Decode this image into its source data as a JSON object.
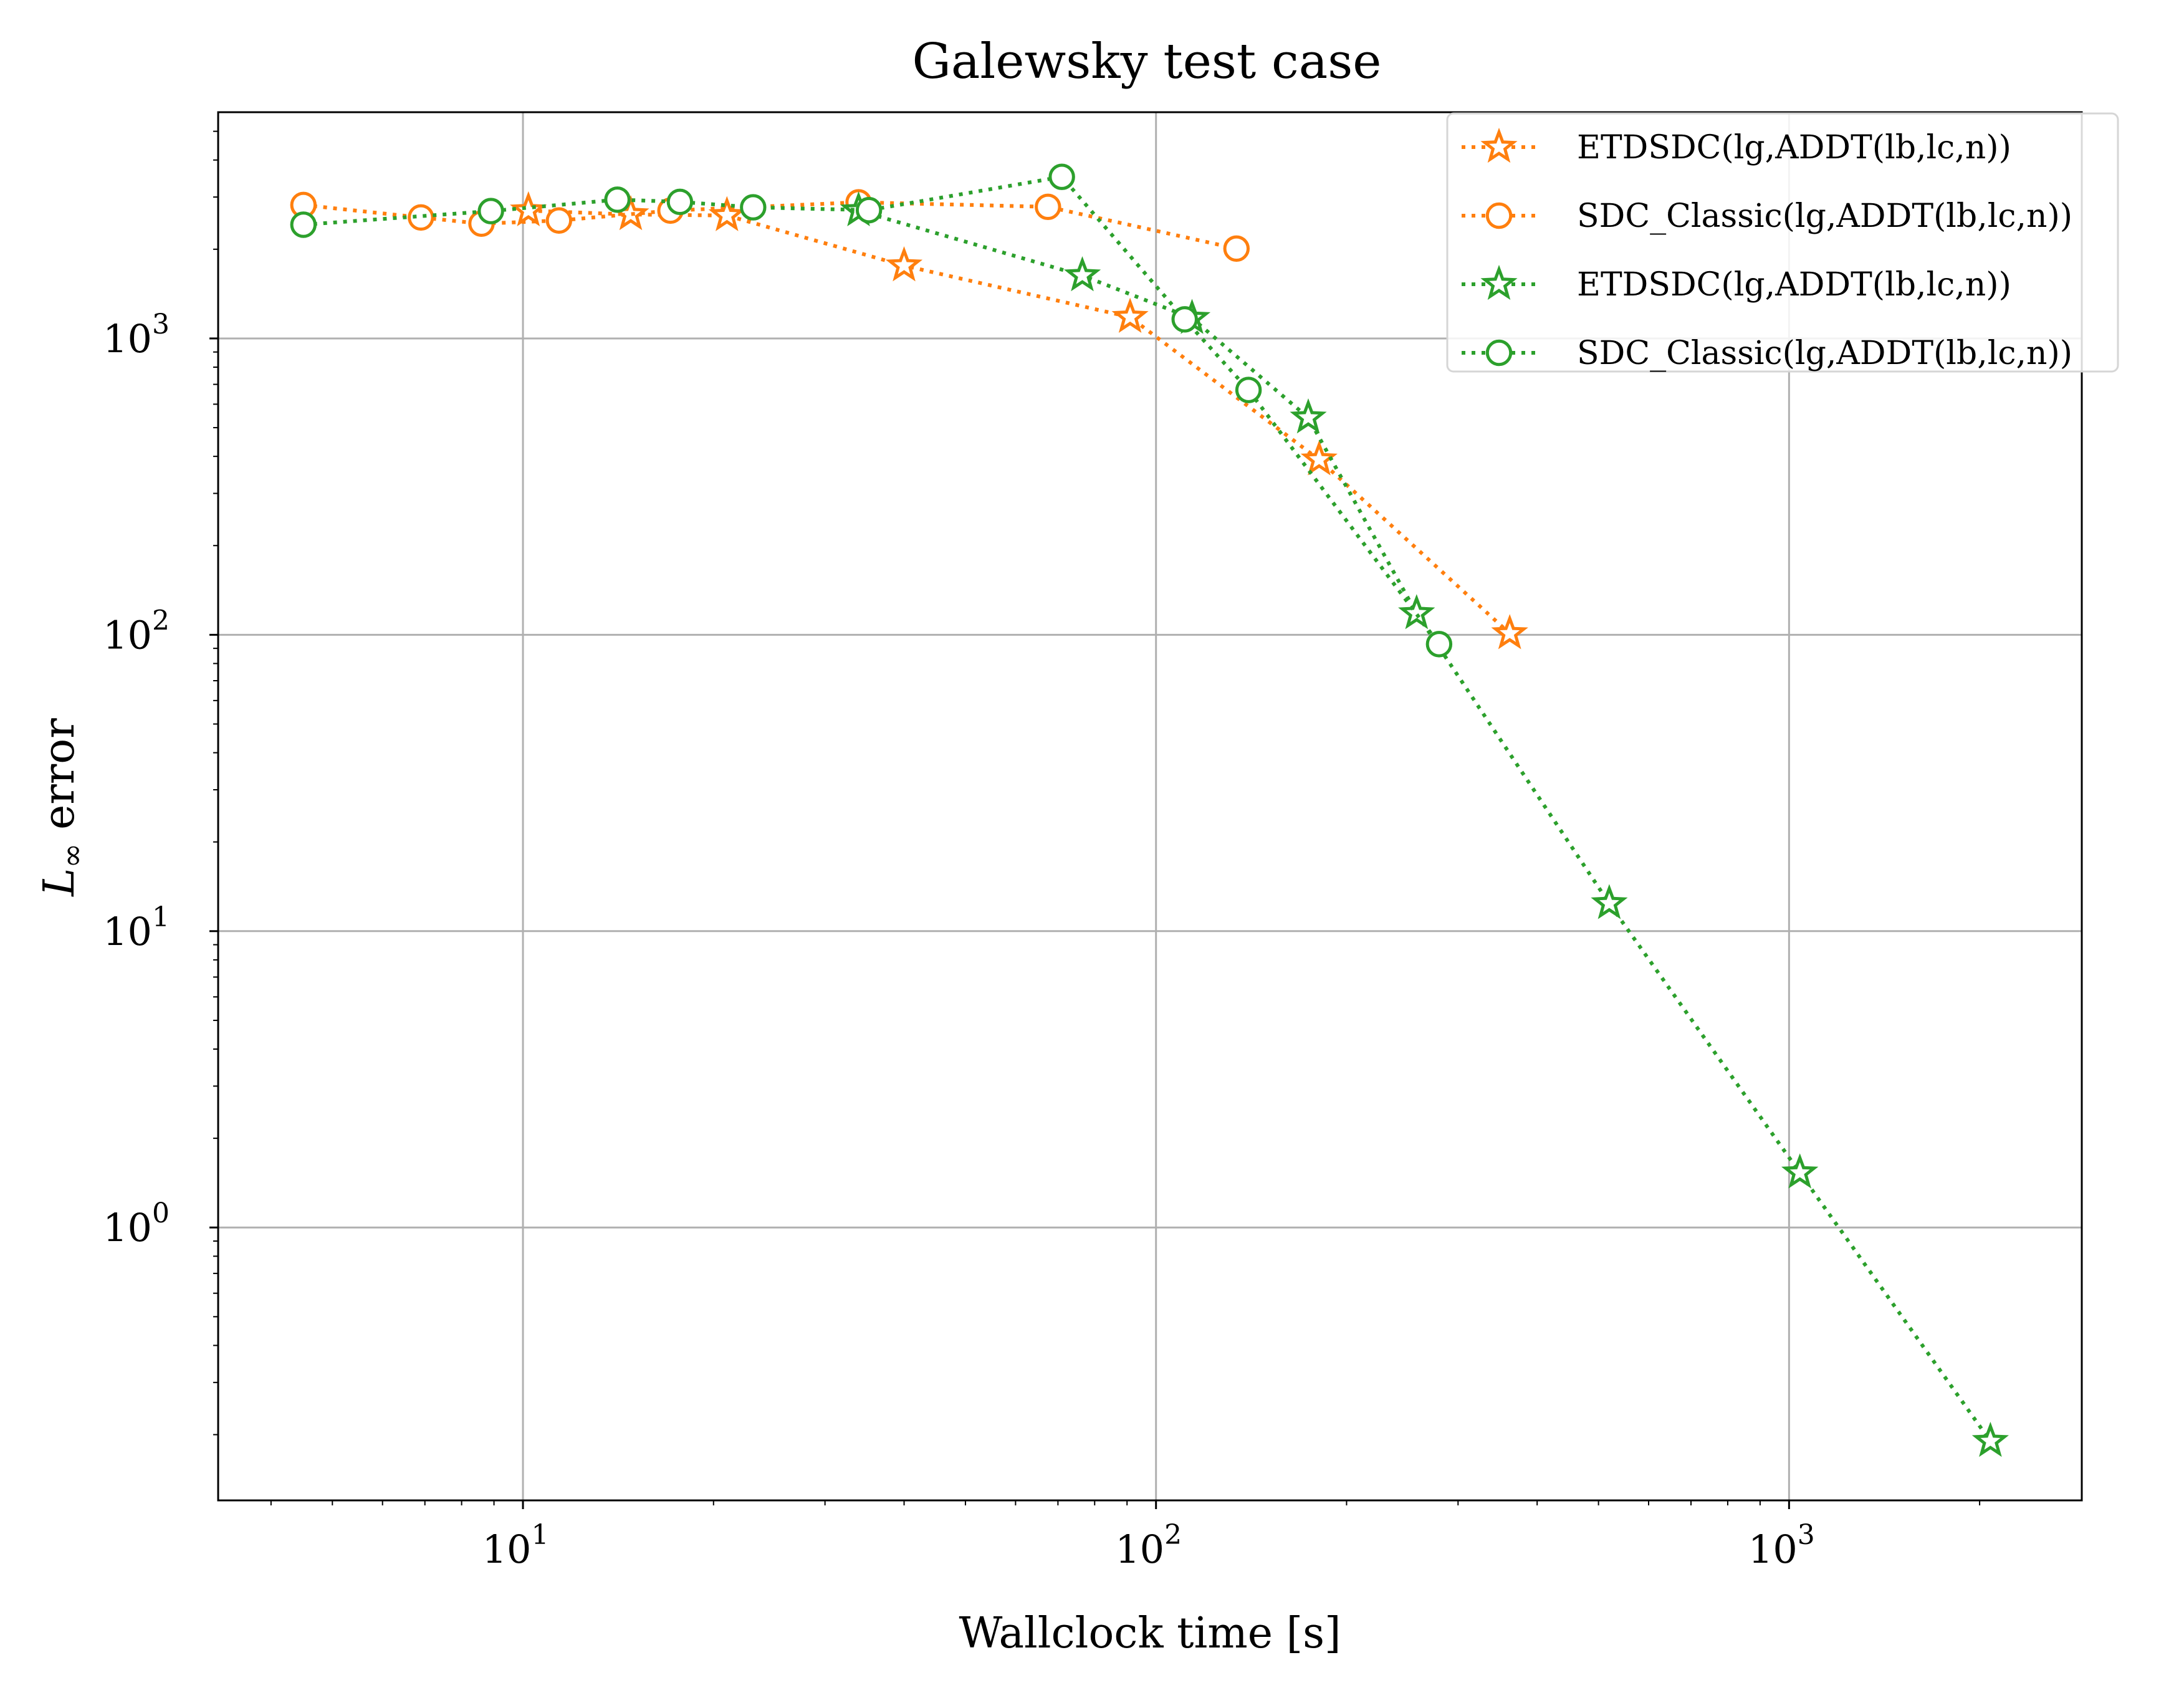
{
  "chart_data": {
    "type": "scatter",
    "title": "Galewsky test case",
    "xlabel": "Wallclock time [s]",
    "ylabel_symbol": "L",
    "ylabel_subscript": "∞",
    "ylabel_rest": " error",
    "xscale": "log",
    "yscale": "log",
    "xlim": [
      3.3,
      2900
    ],
    "ylim": [
      0.12,
      5800
    ],
    "grid": true,
    "legend_position": "top-right",
    "x_ticks": [
      {
        "value": 10,
        "base": "10",
        "exp": "1"
      },
      {
        "value": 100,
        "base": "10",
        "exp": "2"
      },
      {
        "value": 1000,
        "base": "10",
        "exp": "3"
      }
    ],
    "y_ticks": [
      {
        "value": 1,
        "base": "10",
        "exp": "0"
      },
      {
        "value": 10,
        "base": "10",
        "exp": "1"
      },
      {
        "value": 100,
        "base": "10",
        "exp": "2"
      },
      {
        "value": 1000,
        "base": "10",
        "exp": "3"
      }
    ],
    "series": [
      {
        "name": "ETDSDC(lg,ADDT(lb,lc,n))",
        "color": "#ff7f0e",
        "marker": "star",
        "linestyle": "dotted",
        "x": [
          10.2,
          14.8,
          21.0,
          40.0,
          91.0,
          181.0,
          362.0
        ],
        "y": [
          2700,
          2620,
          2600,
          1760,
          1180,
          390,
          101
        ]
      },
      {
        "name": "SDC_Classic(lg,ADDT(lb,lc,n))",
        "color": "#ff7f0e",
        "marker": "circle",
        "linestyle": "dotted",
        "x": [
          4.5,
          6.9,
          8.6,
          11.4,
          17.1,
          33.9,
          67.5,
          134.0
        ],
        "y": [
          2820,
          2560,
          2440,
          2500,
          2700,
          2880,
          2780,
          2010
        ]
      },
      {
        "name": "ETDSDC(lg,ADDT(lb,lc,n))",
        "color": "#2ca02c",
        "marker": "star",
        "linestyle": "dotted",
        "x": [
          33.9,
          76.5,
          114.0,
          174.0,
          258.0,
          520.0,
          1040.0,
          2080.0
        ],
        "y": [
          2700,
          1630,
          1170,
          540,
          118,
          12.4,
          1.53,
          0.19
        ]
      },
      {
        "name": "SDC_Classic(lg,ADDT(lb,lc,n))",
        "color": "#2ca02c",
        "marker": "circle",
        "linestyle": "dotted",
        "x": [
          4.5,
          8.9,
          14.1,
          17.7,
          23.1,
          35.2,
          71.0,
          111.0,
          140.0,
          280.0
        ],
        "y": [
          2420,
          2690,
          2940,
          2890,
          2770,
          2710,
          3510,
          1160,
          670,
          93
        ]
      }
    ]
  }
}
